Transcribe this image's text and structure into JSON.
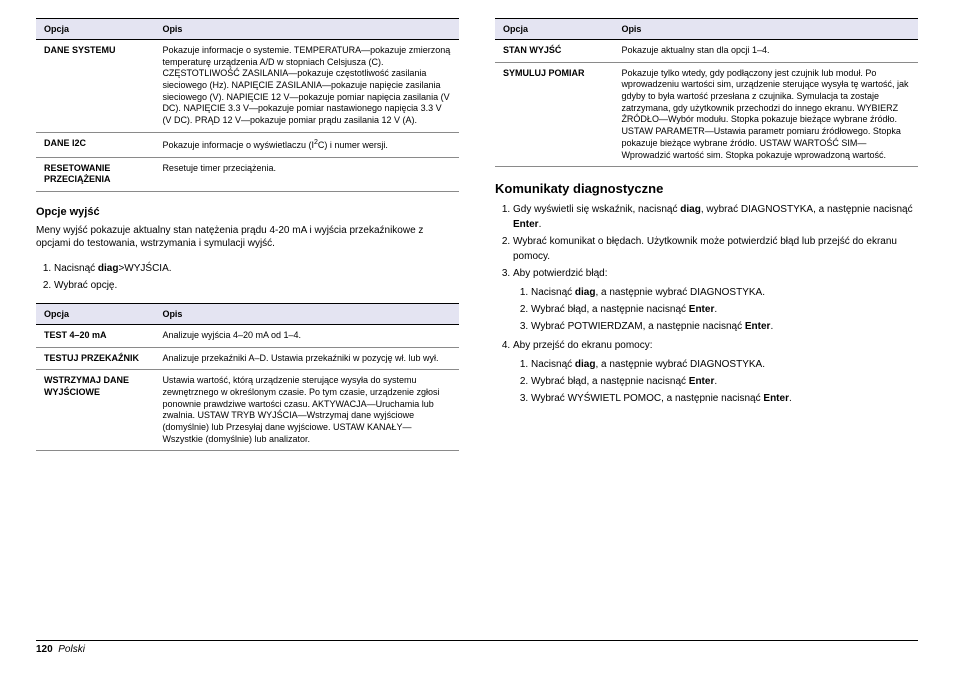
{
  "table1": {
    "head": {
      "c1": "Opcja",
      "c2": "Opis"
    },
    "rows": [
      {
        "c1": "DANE SYSTEMU",
        "c2": "Pokazuje informacje o systemie. TEMPERATURA—pokazuje zmierzoną temperaturę urządzenia A/D w stopniach Celsjusza (C). CZĘSTOTLIWOŚĆ ZASILANIA—pokazuje częstotliwość zasilania sieciowego (Hz). NAPIĘCIE ZASILANIA—pokazuje napięcie zasilania sieciowego (V). NAPIĘCIE 12 V—pokazuje pomiar napięcia zasilania (V DC). NAPIĘCIE 3.3 V—pokazuje pomiar nastawionego napięcia 3.3 V (V DC). PRĄD 12 V—pokazuje pomiar prądu zasilania 12 V (A)."
      },
      {
        "c1": "DANE I2C",
        "c2_html": "Pokazuje informacje o wyświetlaczu (I<sup>2</sup>C) i numer wersji."
      },
      {
        "c1": "RESETOWANIE PRZECIĄŻENIA",
        "c2": "Resetuje timer przeciążenia."
      }
    ]
  },
  "section1": {
    "title": "Opcje wyjść",
    "intro": "Meny wyjść pokazuje aktualny stan natężenia prądu 4-20 mA i wyjścia przekaźnikowe z opcjami do testowania, wstrzymania i symulacji wyjść.",
    "step1_pre": "Nacisnąć ",
    "step1_bold": "diag",
    "step1_post": ">WYJŚCIA.",
    "step2": "Wybrać opcję."
  },
  "table2": {
    "head": {
      "c1": "Opcja",
      "c2": "Opis"
    },
    "rows": [
      {
        "c1": "TEST 4–20 mA",
        "c2": "Analizuje wyjścia 4–20 mA od 1–4."
      },
      {
        "c1": "TESTUJ PRZEKAŹNIK",
        "c2": "Analizuje przekaźniki A–D. Ustawia przekaźniki w pozycję wł. lub wył."
      },
      {
        "c1": "WSTRZYMAJ DANE WYJŚCIOWE",
        "c2": "Ustawia wartość, którą urządzenie sterujące wysyła do systemu zewnętrznego w określonym czasie. Po tym czasie, urządzenie zgłosi ponownie prawdziwe wartości czasu. AKTYWACJA—Uruchamia lub zwalnia. USTAW TRYB WYJŚCIA—Wstrzymaj dane wyjściowe (domyślnie) lub Przesyłaj dane wyjściowe. USTAW KANAŁY—Wszystkie (domyślnie) lub analizator."
      }
    ]
  },
  "table3": {
    "head": {
      "c1": "Opcja",
      "c2": "Opis"
    },
    "rows": [
      {
        "c1": "STAN WYJŚĆ",
        "c2": "Pokazuje aktualny stan dla opcji 1–4."
      },
      {
        "c1": "SYMULUJ POMIAR",
        "c2": "Pokazuje tylko wtedy, gdy podłączony jest czujnik lub moduł. Po wprowadzeniu wartości sim, urządzenie sterujące wysyła tę wartość, jak gdyby to była wartość przesłana z czujnika. Symulacja ta zostaje zatrzymana, gdy użytkownik przechodzi do innego ekranu. WYBIERZ ŹRÓDŁO—Wybór modułu. Stopka pokazuje bieżące wybrane źródło. USTAW PARAMETR—Ustawia parametr pomiaru źródłowego. Stopka pokazuje bieżące wybrane źródło. USTAW WARTOŚĆ SIM—Wprowadzić wartość sim. Stopka pokazuje wprowadzoną wartość."
      }
    ]
  },
  "section2": {
    "title": "Komunikaty diagnostyczne",
    "s1a": "Gdy wyświetli się wskaźnik, nacisnąć ",
    "s1b": "diag",
    "s1c": ", wybrać DIAGNOSTYKA, a następnie nacisnąć ",
    "s1d": "Enter",
    "s1e": ".",
    "s2": "Wybrać komunikat o błędach. Użytkownik może potwierdzić błąd lub przejść do ekranu pomocy.",
    "s3": "Aby potwierdzić błąd:",
    "s3_1a": "Nacisnąć ",
    "s3_1b": "diag",
    "s3_1c": ", a następnie wybrać DIAGNOSTYKA.",
    "s3_2a": "Wybrać błąd, a następnie nacisnąć ",
    "s3_2b": "Enter",
    "s3_2c": ".",
    "s3_3a": "Wybrać POTWIERDZAM, a następnie nacisnąć ",
    "s3_3b": "Enter",
    "s3_3c": ".",
    "s4": "Aby przejść do ekranu pomocy:",
    "s4_1a": "Nacisnąć ",
    "s4_1b": "diag",
    "s4_1c": ", a następnie wybrać DIAGNOSTYKA.",
    "s4_2a": "Wybrać błąd, a następnie nacisnąć ",
    "s4_2b": "Enter",
    "s4_2c": ".",
    "s4_3a": "Wybrać WYŚWIETL POMOC, a następnie nacisnąć ",
    "s4_3b": "Enter",
    "s4_3c": "."
  },
  "footer": {
    "page": "120",
    "lang": "Polski"
  }
}
